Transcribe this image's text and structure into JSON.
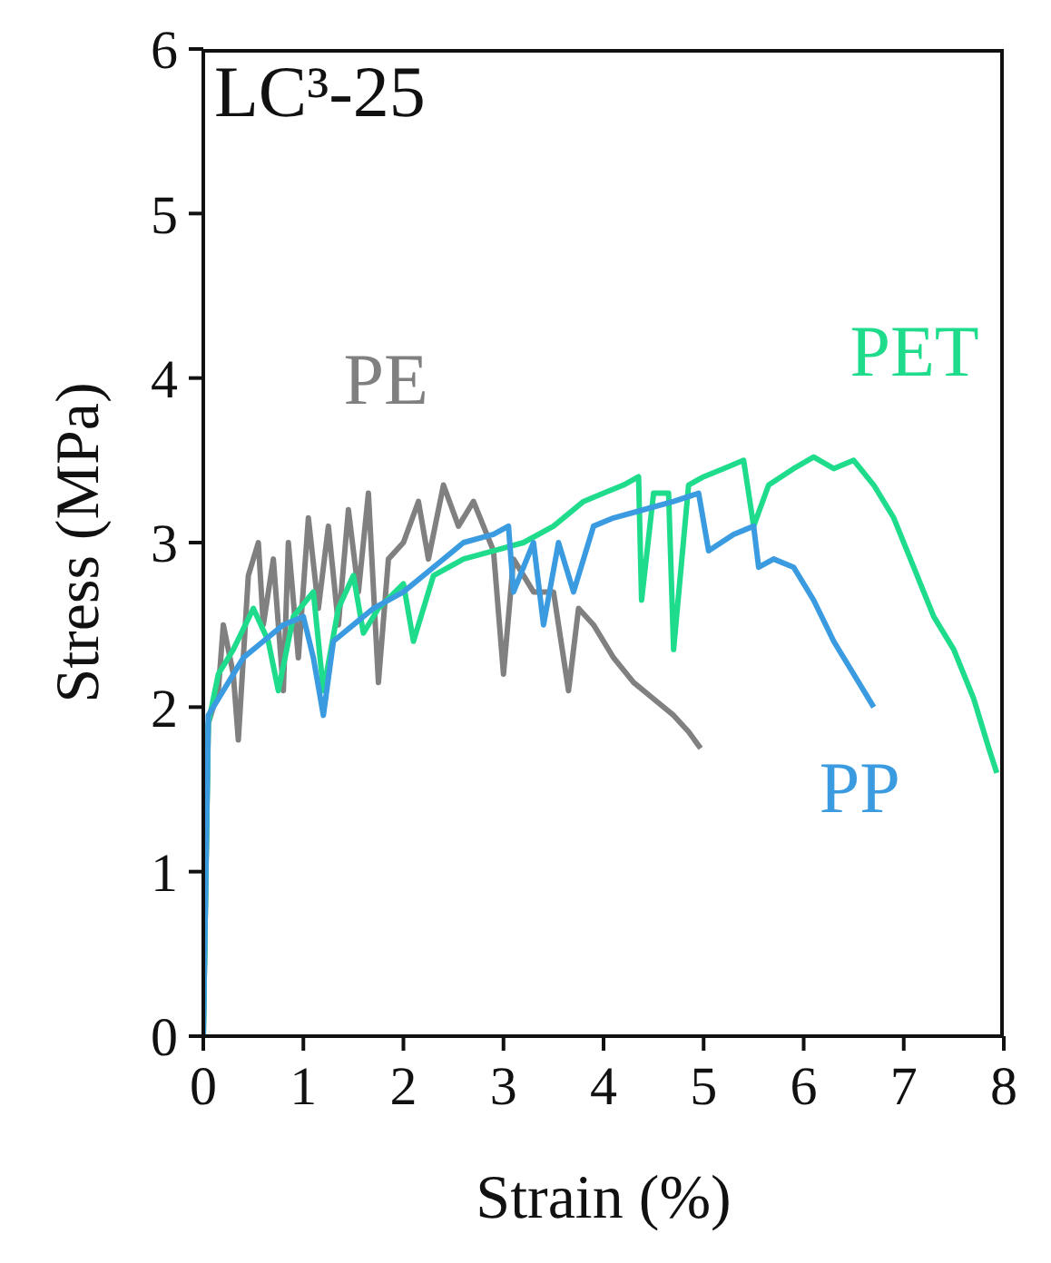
{
  "chart_data": {
    "type": "line",
    "title": "LC³-25",
    "xlabel": "Strain (%)",
    "ylabel": "Stress (MPa)",
    "xlim": [
      0,
      8
    ],
    "xticks": [
      0,
      1,
      2,
      3,
      4,
      5,
      6,
      7,
      8
    ],
    "ylim": [
      0,
      6
    ],
    "yticks": [
      0,
      1,
      2,
      3,
      4,
      5,
      6
    ],
    "marker": "none",
    "line_style": "solid",
    "series": [
      {
        "name": "PE",
        "color": "#808080",
        "x": [
          0,
          0.05,
          0.15,
          0.2,
          0.3,
          0.35,
          0.45,
          0.55,
          0.6,
          0.7,
          0.8,
          0.85,
          0.95,
          1.05,
          1.15,
          1.25,
          1.35,
          1.45,
          1.55,
          1.65,
          1.75,
          1.85,
          2.0,
          2.15,
          2.25,
          2.4,
          2.55,
          2.7,
          2.9,
          3.0,
          3.1,
          3.3,
          3.5,
          3.65,
          3.75,
          3.9,
          4.1,
          4.3,
          4.5,
          4.7,
          4.85,
          4.97
        ],
        "values": [
          0,
          1.9,
          2.1,
          2.5,
          2.2,
          1.8,
          2.8,
          3.0,
          2.5,
          2.9,
          2.1,
          3.0,
          2.3,
          3.15,
          2.6,
          3.1,
          2.5,
          3.2,
          2.7,
          3.3,
          2.15,
          2.9,
          3.0,
          3.25,
          2.9,
          3.35,
          3.1,
          3.25,
          2.95,
          2.2,
          2.9,
          2.7,
          2.7,
          2.1,
          2.6,
          2.5,
          2.3,
          2.15,
          2.05,
          1.95,
          1.85,
          1.75
        ]
      },
      {
        "name": "PET",
        "color": "#1fdc8c",
        "x": [
          0,
          0.05,
          0.15,
          0.3,
          0.5,
          0.65,
          0.75,
          0.9,
          1.1,
          1.2,
          1.35,
          1.5,
          1.6,
          1.75,
          2.0,
          2.1,
          2.3,
          2.6,
          2.9,
          3.2,
          3.5,
          3.8,
          4.0,
          4.2,
          4.35,
          4.38,
          4.5,
          4.65,
          4.7,
          4.85,
          5.0,
          5.2,
          5.4,
          5.5,
          5.65,
          5.9,
          6.1,
          6.3,
          6.5,
          6.7,
          6.9,
          7.1,
          7.3,
          7.5,
          7.7,
          7.85,
          7.93
        ],
        "values": [
          0,
          1.9,
          2.2,
          2.35,
          2.6,
          2.4,
          2.1,
          2.55,
          2.7,
          2.1,
          2.6,
          2.8,
          2.45,
          2.6,
          2.75,
          2.4,
          2.8,
          2.9,
          2.95,
          3.0,
          3.1,
          3.25,
          3.3,
          3.35,
          3.4,
          2.65,
          3.3,
          3.3,
          2.35,
          3.35,
          3.4,
          3.45,
          3.5,
          3.1,
          3.35,
          3.45,
          3.52,
          3.45,
          3.5,
          3.35,
          3.15,
          2.85,
          2.55,
          2.35,
          2.05,
          1.75,
          1.6
        ]
      },
      {
        "name": "PP",
        "color": "#3a9be0",
        "x": [
          0,
          0.05,
          0.2,
          0.4,
          0.6,
          0.8,
          1.0,
          1.1,
          1.2,
          1.3,
          1.5,
          1.7,
          2.0,
          2.3,
          2.6,
          2.9,
          3.05,
          3.1,
          3.3,
          3.4,
          3.55,
          3.7,
          3.9,
          4.1,
          4.4,
          4.7,
          4.95,
          5.05,
          5.3,
          5.5,
          5.55,
          5.7,
          5.9,
          6.1,
          6.3,
          6.5,
          6.7
        ],
        "values": [
          0,
          1.95,
          2.1,
          2.3,
          2.4,
          2.5,
          2.55,
          2.3,
          1.95,
          2.4,
          2.5,
          2.6,
          2.7,
          2.85,
          3.0,
          3.05,
          3.1,
          2.7,
          3.0,
          2.5,
          3.0,
          2.7,
          3.1,
          3.15,
          3.2,
          3.25,
          3.3,
          2.95,
          3.05,
          3.1,
          2.85,
          2.9,
          2.85,
          2.65,
          2.4,
          2.2,
          2.0
        ]
      }
    ]
  }
}
